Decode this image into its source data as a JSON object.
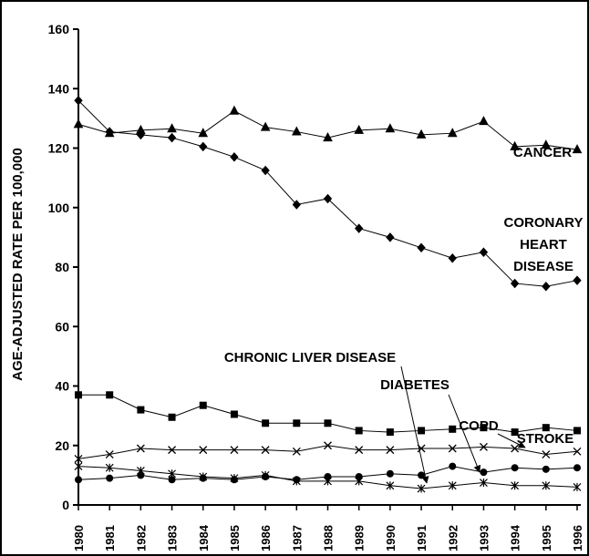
{
  "chart_data": {
    "type": "line",
    "y_label": "AGE-ADJUSTED RATE PER 100,000",
    "categories": [
      "1980",
      "1981",
      "1982",
      "1983",
      "1984",
      "1985",
      "1986",
      "1987",
      "1988",
      "1989",
      "1990",
      "1991",
      "1992",
      "1993",
      "1994",
      "1995",
      "1996"
    ],
    "ylim": [
      0,
      160
    ],
    "yticks": [
      0,
      20,
      40,
      60,
      80,
      100,
      120,
      140,
      160
    ],
    "series": [
      {
        "name": "CANCER",
        "color": "#000000",
        "marker": "triangle",
        "values": [
          128,
          125,
          126,
          126.5,
          125,
          132.5,
          127,
          125.5,
          123.5,
          126,
          126.5,
          124.5,
          125,
          129,
          120.5,
          121,
          119.5
        ]
      },
      {
        "name": "CORONARY HEART DISEASE",
        "color": "#000000",
        "marker": "diamond",
        "values": [
          136,
          125.5,
          124.5,
          123.5,
          120.5,
          117,
          112.5,
          101,
          103,
          93,
          90,
          86.5,
          83,
          85,
          74.5,
          73.5,
          75.5
        ]
      },
      {
        "name": "STROKE",
        "color": "#000000",
        "marker": "square",
        "values": [
          37,
          37,
          32,
          29.5,
          33.5,
          30.5,
          27.5,
          27.5,
          27.5,
          25,
          24.5,
          25,
          25.5,
          26,
          24.5,
          26,
          25
        ]
      },
      {
        "name": "COPD",
        "color": "#000000",
        "marker": "x",
        "values": [
          15.5,
          17,
          19,
          18.5,
          18.5,
          18.5,
          18.5,
          18,
          20,
          18.5,
          18.5,
          19,
          19,
          19.5,
          19,
          17,
          18
        ]
      },
      {
        "name": "DIABETES",
        "color": "#000000",
        "marker": "circle",
        "values": [
          8.5,
          9,
          10,
          8.5,
          9,
          8.5,
          9.5,
          8.5,
          9.5,
          9.5,
          10.5,
          10,
          13,
          11,
          12.5,
          12,
          12.5
        ]
      },
      {
        "name": "CHRONIC LIVER DISEASE",
        "color": "#000000",
        "marker": "asterisk",
        "values": [
          13,
          12.5,
          11.5,
          10.5,
          9.5,
          9,
          10,
          8,
          8,
          8,
          6.5,
          5.5,
          6.5,
          7.5,
          6.5,
          6.5,
          6
        ]
      }
    ]
  }
}
